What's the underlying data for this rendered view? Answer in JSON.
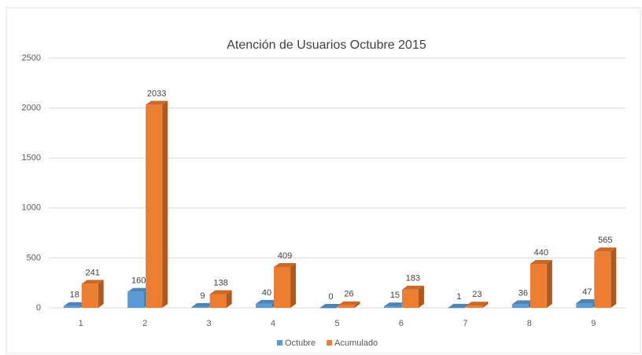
{
  "chart_data": {
    "type": "bar3d",
    "title": "Atención de Usuarios Octubre 2015",
    "categories": [
      "1",
      "2",
      "3",
      "4",
      "5",
      "6",
      "7",
      "8",
      "9"
    ],
    "series": [
      {
        "name": "Octubre",
        "color": "#5b9bd5",
        "values": [
          18,
          160,
          9,
          40,
          0,
          15,
          1,
          36,
          47
        ]
      },
      {
        "name": "Acumulado",
        "color": "#ed7d31",
        "values": [
          241,
          2033,
          138,
          409,
          26,
          183,
          23,
          440,
          565
        ]
      }
    ],
    "ylim": [
      0,
      2500
    ],
    "yticks": [
      0,
      500,
      1000,
      1500,
      2000,
      2500
    ],
    "grid": true,
    "legend": "bottom"
  }
}
